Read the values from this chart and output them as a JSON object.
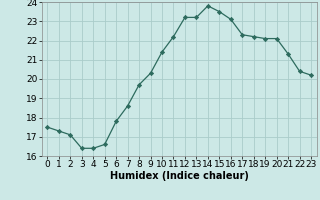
{
  "x": [
    0,
    1,
    2,
    3,
    4,
    5,
    6,
    7,
    8,
    9,
    10,
    11,
    12,
    13,
    14,
    15,
    16,
    17,
    18,
    19,
    20,
    21,
    22,
    23
  ],
  "y": [
    17.5,
    17.3,
    17.1,
    16.4,
    16.4,
    16.6,
    17.8,
    18.6,
    19.7,
    20.3,
    21.4,
    22.2,
    23.2,
    23.2,
    23.8,
    23.5,
    23.1,
    22.3,
    22.2,
    22.1,
    22.1,
    21.3,
    20.4,
    20.2
  ],
  "xlabel": "Humidex (Indice chaleur)",
  "ylim": [
    16,
    24
  ],
  "xlim": [
    -0.5,
    23.5
  ],
  "yticks": [
    16,
    17,
    18,
    19,
    20,
    21,
    22,
    23,
    24
  ],
  "xticks": [
    0,
    1,
    2,
    3,
    4,
    5,
    6,
    7,
    8,
    9,
    10,
    11,
    12,
    13,
    14,
    15,
    16,
    17,
    18,
    19,
    20,
    21,
    22,
    23
  ],
  "line_color": "#2d6b5e",
  "marker_color": "#2d6b5e",
  "bg_color": "#cce8e6",
  "grid_color": "#aaccca",
  "label_fontsize": 7,
  "tick_fontsize": 6.5
}
